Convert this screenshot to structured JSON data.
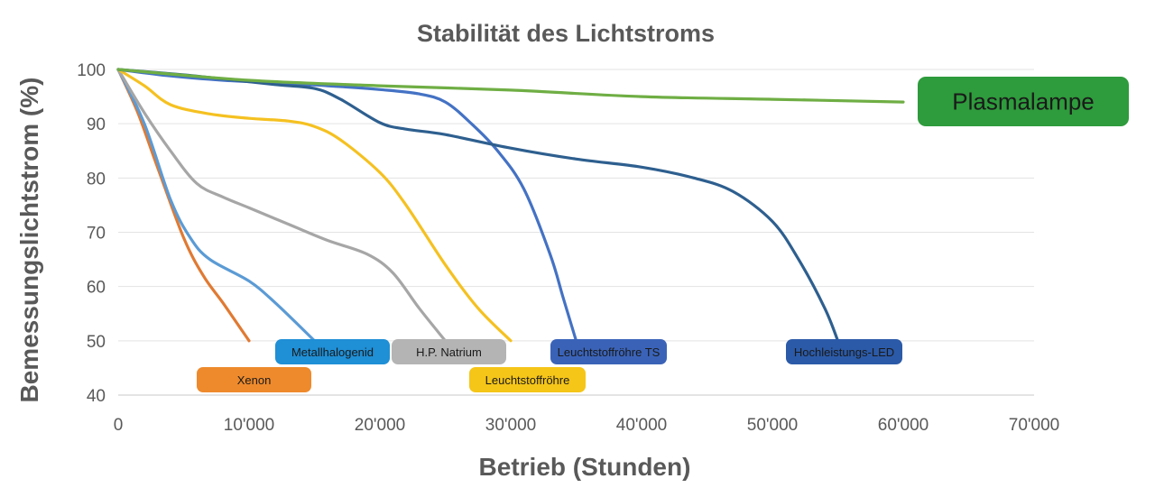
{
  "chart_data": {
    "type": "line",
    "title": "Stabilität des Lichtstroms",
    "xlabel": "Betrieb (Stunden)",
    "ylabel": "Bemessungslichtstrom (%)",
    "xlim": [
      0,
      70000
    ],
    "ylim": [
      40,
      100
    ],
    "x_ticks": [
      0,
      10000,
      20000,
      30000,
      40000,
      50000,
      60000,
      70000
    ],
    "x_tick_labels": [
      "0",
      "10'000",
      "20'000",
      "30'000",
      "40'000",
      "50'000",
      "60'000",
      "70'000"
    ],
    "y_ticks": [
      40,
      50,
      60,
      70,
      80,
      90,
      100
    ],
    "y_tick_labels": [
      "40",
      "50",
      "60",
      "70",
      "80",
      "90",
      "100"
    ],
    "grid": true,
    "legend": "inline labels near line ends",
    "series": [
      {
        "name": "Xenon",
        "color": "#e07a33",
        "label_bg": "#ee8a2c",
        "points": [
          [
            0,
            100
          ],
          [
            1500,
            92
          ],
          [
            3000,
            82
          ],
          [
            5000,
            69
          ],
          [
            6500,
            62
          ],
          [
            8000,
            57
          ],
          [
            10000,
            50
          ]
        ]
      },
      {
        "name": "Metallhalogenid",
        "color": "#5b9bd5",
        "label_bg": "#1f8fd6",
        "points": [
          [
            0,
            100
          ],
          [
            2000,
            90
          ],
          [
            4000,
            76
          ],
          [
            5500,
            69
          ],
          [
            7000,
            65
          ],
          [
            10000,
            61
          ],
          [
            12000,
            57
          ],
          [
            15000,
            50
          ]
        ]
      },
      {
        "name": "H.P. Natrium",
        "color": "#a6a6a6",
        "label_bg": "#b4b4b4",
        "points": [
          [
            0,
            100
          ],
          [
            2000,
            92
          ],
          [
            4000,
            85
          ],
          [
            6000,
            79
          ],
          [
            8000,
            76.5
          ],
          [
            10000,
            74.5
          ],
          [
            13000,
            71.5
          ],
          [
            16000,
            68.5
          ],
          [
            19000,
            66
          ],
          [
            21000,
            62.5
          ],
          [
            23000,
            56
          ],
          [
            25000,
            50
          ]
        ]
      },
      {
        "name": "Leuchtstoffröhre",
        "color": "#f5c121",
        "label_bg": "#f5c518",
        "points": [
          [
            0,
            100
          ],
          [
            2000,
            97
          ],
          [
            4000,
            93.5
          ],
          [
            7000,
            91.8
          ],
          [
            10000,
            91
          ],
          [
            13000,
            90.5
          ],
          [
            15000,
            89.5
          ],
          [
            17000,
            87
          ],
          [
            20000,
            81
          ],
          [
            22000,
            75
          ],
          [
            25000,
            64
          ],
          [
            27500,
            56
          ],
          [
            30000,
            50
          ]
        ]
      },
      {
        "name": "Leuchtstoffröhre TS",
        "color": "#4472c4",
        "label_bg": "#3a63b8",
        "points": [
          [
            0,
            100
          ],
          [
            4000,
            98.8
          ],
          [
            8000,
            98
          ],
          [
            12000,
            97.5
          ],
          [
            16000,
            97
          ],
          [
            20000,
            96.3
          ],
          [
            23000,
            95.5
          ],
          [
            25000,
            94
          ],
          [
            27000,
            90
          ],
          [
            29000,
            85
          ],
          [
            31000,
            78
          ],
          [
            33000,
            66
          ],
          [
            34000,
            58
          ],
          [
            35000,
            50
          ]
        ]
      },
      {
        "name": "Hochleistungs-LED",
        "color": "#2e5f8f",
        "label_bg": "#2b5aa8",
        "points": [
          [
            0,
            100
          ],
          [
            5000,
            99
          ],
          [
            9000,
            98
          ],
          [
            12000,
            97.2
          ],
          [
            15000,
            96.5
          ],
          [
            17000,
            94.5
          ],
          [
            20000,
            90.2
          ],
          [
            22000,
            89
          ],
          [
            25000,
            88
          ],
          [
            30000,
            85.5
          ],
          [
            35000,
            83.5
          ],
          [
            40000,
            82
          ],
          [
            44000,
            80
          ],
          [
            47000,
            77.5
          ],
          [
            50000,
            72
          ],
          [
            52000,
            65
          ],
          [
            54000,
            56
          ],
          [
            55000,
            50
          ]
        ]
      },
      {
        "name": "Plasmalampe",
        "color": "#6fae44",
        "label_bg": "#2e9b3c",
        "points": [
          [
            0,
            100
          ],
          [
            10000,
            98
          ],
          [
            20000,
            97
          ],
          [
            30000,
            96.2
          ],
          [
            40000,
            95
          ],
          [
            50000,
            94.5
          ],
          [
            60000,
            94
          ]
        ]
      }
    ]
  }
}
